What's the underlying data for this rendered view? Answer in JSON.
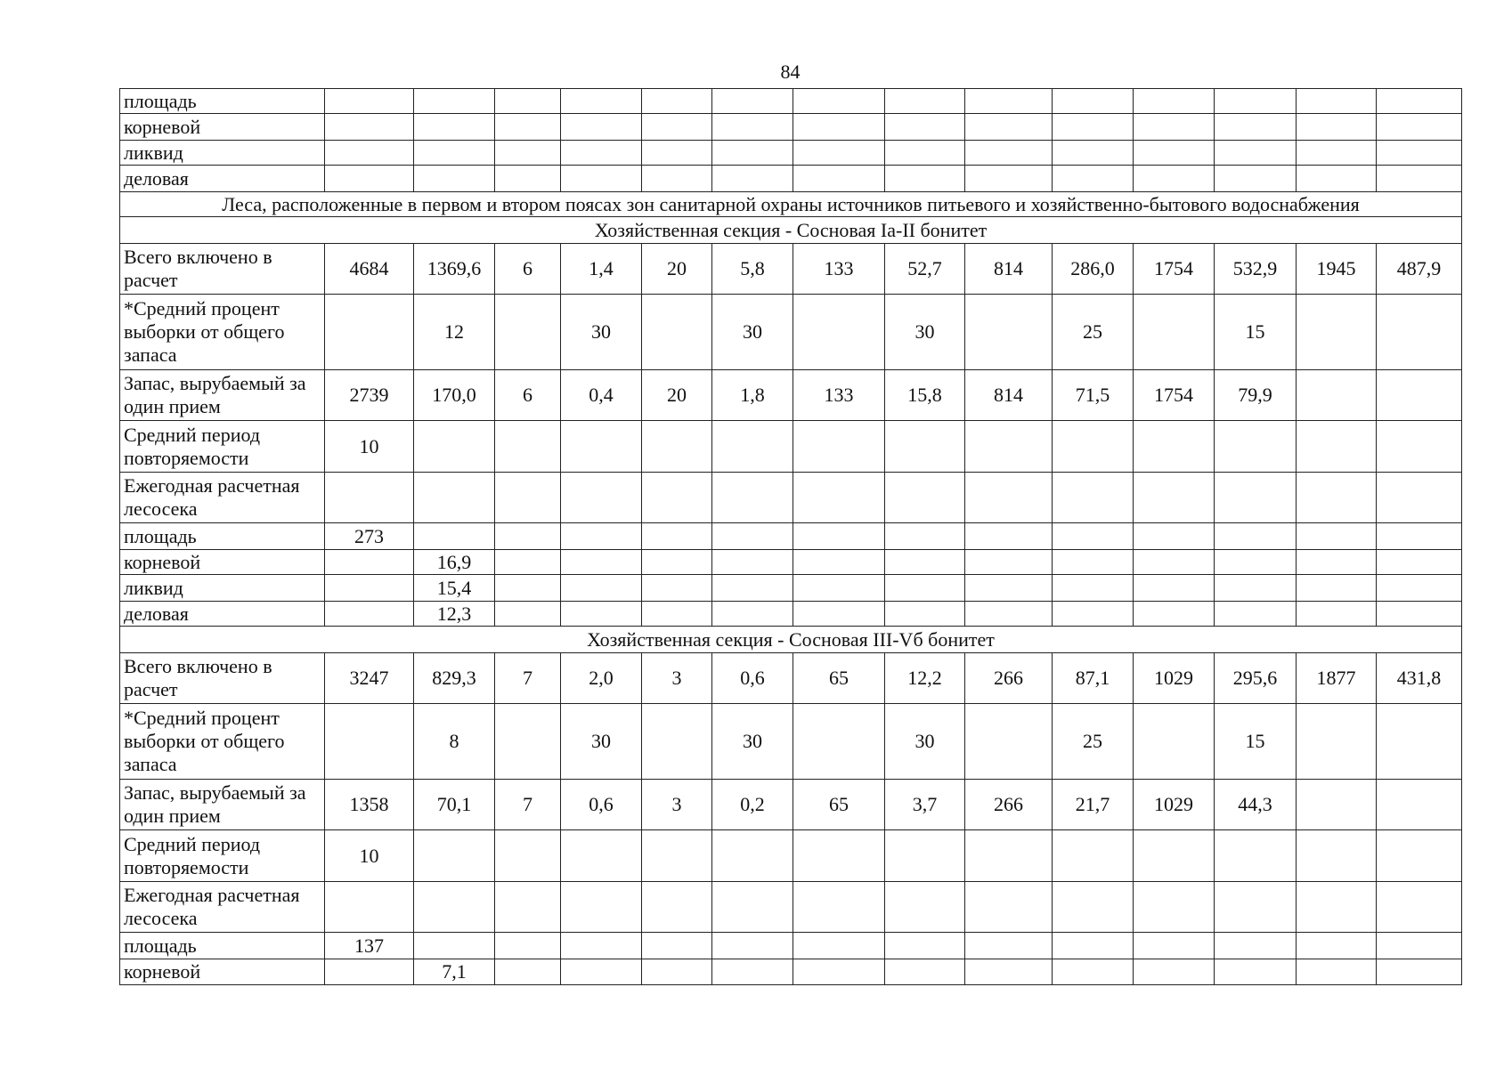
{
  "page_number": "84",
  "rows": [
    {
      "type": "row",
      "h": 28,
      "label": "площадь",
      "cells": [
        "",
        "",
        "",
        "",
        "",
        "",
        "",
        "",
        "",
        "",
        "",
        "",
        "",
        ""
      ]
    },
    {
      "type": "row",
      "h": 30,
      "label": "корневой",
      "cells": [
        "",
        "",
        "",
        "",
        "",
        "",
        "",
        "",
        "",
        "",
        "",
        "",
        "",
        ""
      ]
    },
    {
      "type": "row",
      "h": 28,
      "label": "ликвид",
      "cells": [
        "",
        "",
        "",
        "",
        "",
        "",
        "",
        "",
        "",
        "",
        "",
        "",
        "",
        ""
      ]
    },
    {
      "type": "row",
      "h": 30,
      "label": "деловая",
      "cells": [
        "",
        "",
        "",
        "",
        "",
        "",
        "",
        "",
        "",
        "",
        "",
        "",
        "",
        ""
      ]
    },
    {
      "type": "section",
      "h": 28,
      "label": "Леса, расположенные в первом и втором поясах зон санитарной охраны источников питьевого и хозяйственно-бытового водоснабжения"
    },
    {
      "type": "section",
      "h": 30,
      "label": "Хозяйственная секция - Сосновая Ia-II бонитет"
    },
    {
      "type": "row",
      "h": 57,
      "label": "Всего включено в расчет",
      "cells": [
        "4684",
        "1369,6",
        "6",
        "1,4",
        "20",
        "5,8",
        "133",
        "52,7",
        "814",
        "286,0",
        "1754",
        "532,9",
        "1945",
        "487,9"
      ]
    },
    {
      "type": "row",
      "h": 85,
      "label": "*Средний процент выборки от общего запаса",
      "cells": [
        "",
        "12",
        "",
        "30",
        "",
        "30",
        "",
        "30",
        "",
        "25",
        "",
        "15",
        "",
        ""
      ]
    },
    {
      "type": "row",
      "h": 57,
      "label": "Запас, вырубаемый за один прием",
      "cells": [
        "2739",
        "170,0",
        "6",
        "0,4",
        "20",
        "1,8",
        "133",
        "15,8",
        "814",
        "71,5",
        "1754",
        "79,9",
        "",
        ""
      ]
    },
    {
      "type": "row",
      "h": 58,
      "label": "Средний период повторяемости",
      "cells": [
        "10",
        "",
        "",
        "",
        "",
        "",
        "",
        "",
        "",
        "",
        "",
        "",
        "",
        ""
      ]
    },
    {
      "type": "row",
      "h": 57,
      "label": "Ежегодная расчетная лесосека",
      "cells": [
        "",
        "",
        "",
        "",
        "",
        "",
        "",
        "",
        "",
        "",
        "",
        "",
        "",
        ""
      ]
    },
    {
      "type": "row",
      "h": 30,
      "label": "площадь",
      "cells": [
        "273",
        "",
        "",
        "",
        "",
        "",
        "",
        "",
        "",
        "",
        "",
        "",
        "",
        ""
      ]
    },
    {
      "type": "row",
      "h": 28,
      "label": "корневой",
      "cells": [
        "",
        "16,9",
        "",
        "",
        "",
        "",
        "",
        "",
        "",
        "",
        "",
        "",
        "",
        ""
      ]
    },
    {
      "type": "row",
      "h": 30,
      "label": "ликвид",
      "cells": [
        "",
        "15,4",
        "",
        "",
        "",
        "",
        "",
        "",
        "",
        "",
        "",
        "",
        "",
        ""
      ]
    },
    {
      "type": "row",
      "h": 28,
      "label": "деловая",
      "cells": [
        "",
        "12,3",
        "",
        "",
        "",
        "",
        "",
        "",
        "",
        "",
        "",
        "",
        "",
        ""
      ]
    },
    {
      "type": "section",
      "h": 30,
      "label": "Хозяйственная секция - Сосновая III-Vб бонитет"
    },
    {
      "type": "row",
      "h": 57,
      "label": "Всего включено в расчет",
      "cells": [
        "3247",
        "829,3",
        "7",
        "2,0",
        "3",
        "0,6",
        "65",
        "12,2",
        "266",
        "87,1",
        "1029",
        "295,6",
        "1877",
        "431,8"
      ]
    },
    {
      "type": "row",
      "h": 85,
      "label": "*Средний процент выборки от общего запаса",
      "cells": [
        "",
        "8",
        "",
        "30",
        "",
        "30",
        "",
        "30",
        "",
        "25",
        "",
        "15",
        "",
        ""
      ]
    },
    {
      "type": "row",
      "h": 57,
      "label": "Запас, вырубаемый за один прием",
      "cells": [
        "1358",
        "70,1",
        "7",
        "0,6",
        "3",
        "0,2",
        "65",
        "3,7",
        "266",
        "21,7",
        "1029",
        "44,3",
        "",
        ""
      ]
    },
    {
      "type": "row",
      "h": 58,
      "label": "Средний период повторяемости",
      "cells": [
        "10",
        "",
        "",
        "",
        "",
        "",
        "",
        "",
        "",
        "",
        "",
        "",
        "",
        ""
      ]
    },
    {
      "type": "row",
      "h": 57,
      "label": "Ежегодная расчетная лесосека",
      "cells": [
        "",
        "",
        "",
        "",
        "",
        "",
        "",
        "",
        "",
        "",
        "",
        "",
        "",
        ""
      ]
    },
    {
      "type": "row",
      "h": 30,
      "label": "площадь",
      "cells": [
        "137",
        "",
        "",
        "",
        "",
        "",
        "",
        "",
        "",
        "",
        "",
        "",
        "",
        ""
      ]
    },
    {
      "type": "row",
      "h": 29,
      "label": "корневой",
      "cells": [
        "",
        "7,1",
        "",
        "",
        "",
        "",
        "",
        "",
        "",
        "",
        "",
        "",
        "",
        ""
      ]
    }
  ]
}
